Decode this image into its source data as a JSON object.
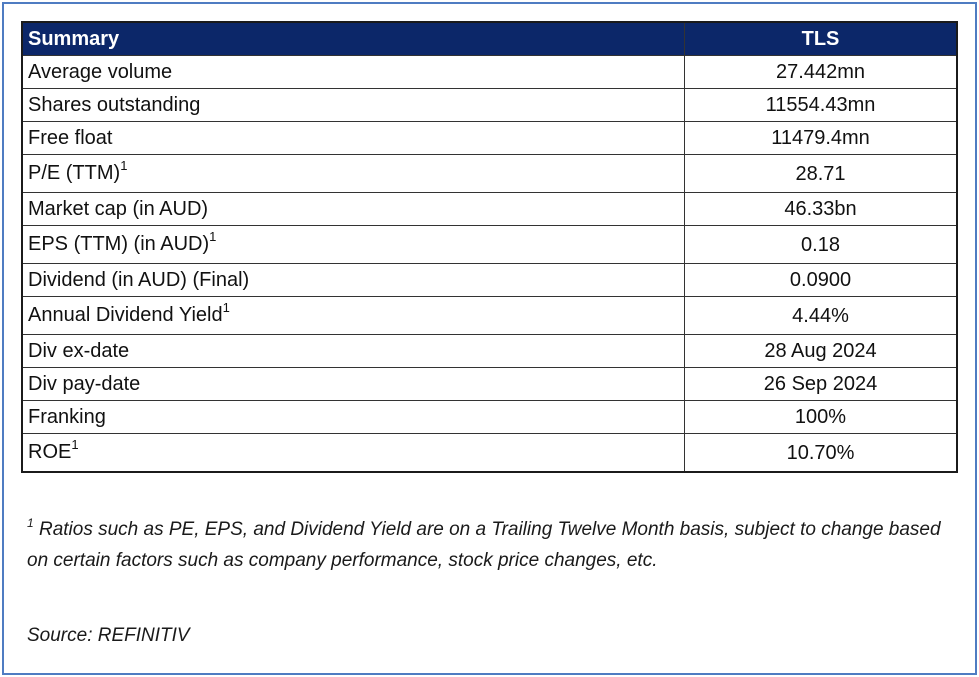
{
  "table": {
    "header": {
      "label": "Summary",
      "value": "TLS"
    },
    "rows": [
      {
        "label": "Average volume",
        "sup": "",
        "value": "27.442mn"
      },
      {
        "label": "Shares outstanding",
        "sup": "",
        "value": "11554.43mn"
      },
      {
        "label": "Free float",
        "sup": "",
        "value": "11479.4mn"
      },
      {
        "label": "P/E (TTM)",
        "sup": "1",
        "value": "28.71"
      },
      {
        "label": "Market cap (in AUD)",
        "sup": "",
        "value": "46.33bn"
      },
      {
        "label": "EPS (TTM) (in AUD)",
        "sup": "1",
        "value": "0.18"
      },
      {
        "label": "Dividend (in AUD) (Final)",
        "sup": "",
        "value": "0.0900"
      },
      {
        "label": "Annual Dividend Yield",
        "sup": "1",
        "value": "4.44%"
      },
      {
        "label": "Div ex-date",
        "sup": "",
        "value": "28 Aug 2024"
      },
      {
        "label": "Div pay-date",
        "sup": "",
        "value": "26 Sep 2024"
      },
      {
        "label": "Franking",
        "sup": "",
        "value": "100%"
      },
      {
        "label": "ROE",
        "sup": "1",
        "value": "10.70%"
      }
    ]
  },
  "footnote": {
    "marker": "1",
    "text": "Ratios such as PE, EPS, and Dividend Yield are on a Trailing Twelve Month basis, subject to change based on certain factors such as company performance, stock price changes, etc."
  },
  "source": "Source: REFINITIV",
  "colors": {
    "header_bg": "#0c2769",
    "frame_border": "#4f7cc2"
  }
}
